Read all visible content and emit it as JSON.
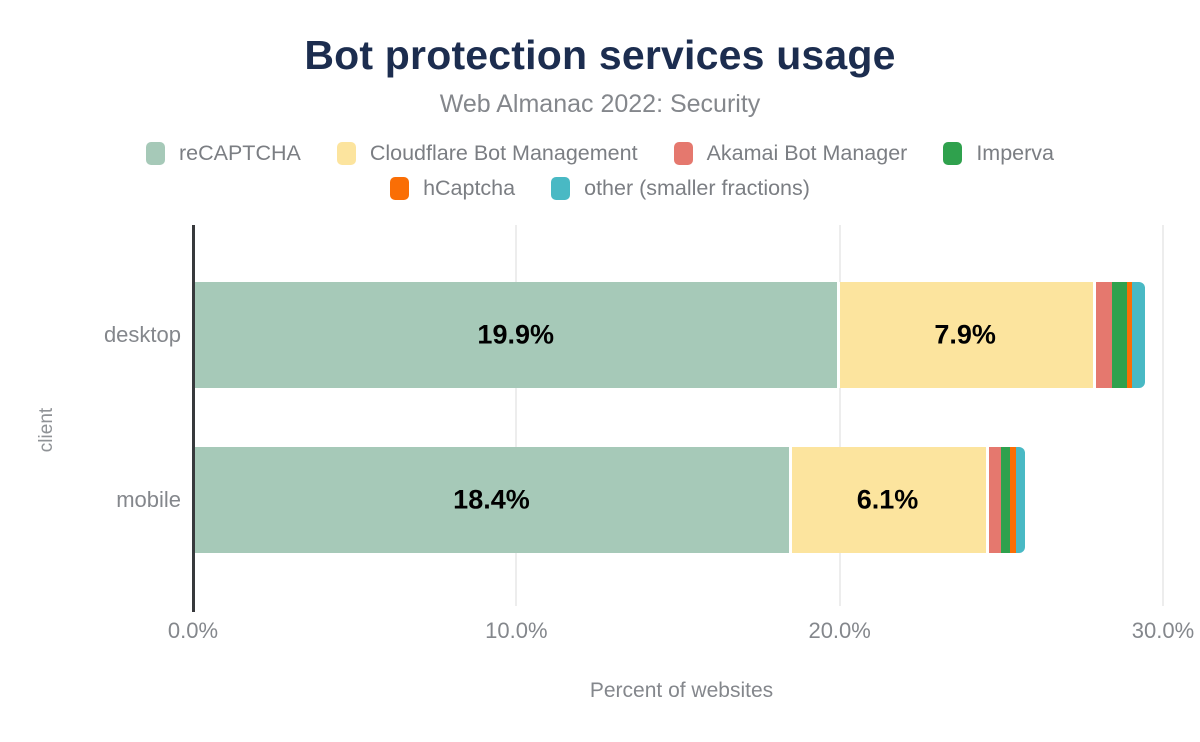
{
  "chart_data": {
    "type": "bar",
    "variant": "horizontal-stacked",
    "title": "Bot protection services usage",
    "subtitle": "Web Almanac 2022: Security",
    "xlabel": "Percent of websites",
    "ylabel": "client",
    "categories": [
      "desktop",
      "mobile"
    ],
    "series": [
      {
        "name": "reCAPTCHA",
        "color": "#a6c9b8",
        "values": [
          19.9,
          18.4
        ],
        "data_labels": [
          "19.9%",
          "18.4%"
        ]
      },
      {
        "name": "Cloudflare Bot Management",
        "color": "#fce49e",
        "values": [
          7.9,
          6.1
        ],
        "data_labels": [
          "7.9%",
          "6.1%"
        ]
      },
      {
        "name": "Akamai Bot Manager",
        "color": "#e5786e",
        "values": [
          0.6,
          0.45
        ],
        "data_labels": [
          null,
          null
        ]
      },
      {
        "name": "Imperva",
        "color": "#2fa14d",
        "values": [
          0.45,
          0.3
        ],
        "data_labels": [
          null,
          null
        ]
      },
      {
        "name": "hCaptcha",
        "color": "#fa6e05",
        "values": [
          0.15,
          0.16
        ],
        "data_labels": [
          null,
          null
        ]
      },
      {
        "name": "other (smaller fractions)",
        "color": "#49b9c4",
        "values": [
          0.4,
          0.3
        ],
        "data_labels": [
          null,
          null
        ]
      }
    ],
    "legend_rows": [
      [
        0,
        1,
        2,
        3
      ],
      [
        4,
        5
      ]
    ],
    "legend_position": "top",
    "x_ticks": [
      {
        "value": 0,
        "label": "0.0%"
      },
      {
        "value": 10,
        "label": "10.0%"
      },
      {
        "value": 20,
        "label": "20.0%"
      },
      {
        "value": 30,
        "label": "30.0%"
      }
    ],
    "xlim": [
      0,
      30
    ],
    "grid": "vertical-light",
    "white_gap_before_series": [
      1,
      2
    ],
    "colors": {
      "title": "#1c2d4f",
      "text": "#84878c",
      "axis_line": "#37393c",
      "gridline": "#ededed"
    }
  }
}
